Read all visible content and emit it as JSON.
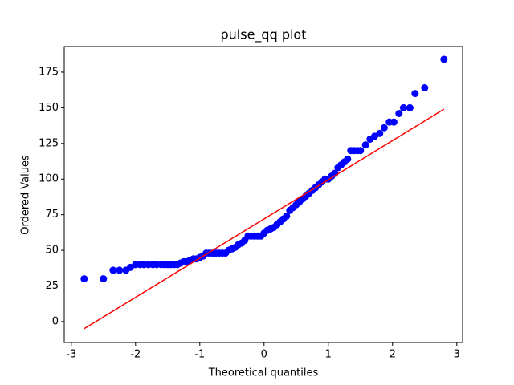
{
  "chart_data": {
    "type": "scatter",
    "title": "pulse_qq plot",
    "x_label": "Theoretical quantiles",
    "y_label": "Ordered Values",
    "xlim": [
      -3.11,
      3.09
    ],
    "ylim": [
      -14.7,
      193
    ],
    "xticks": [
      -3,
      -2,
      -1,
      0,
      1,
      2,
      3
    ],
    "yticks": [
      0,
      25,
      50,
      75,
      100,
      125,
      150,
      175
    ],
    "grid": false,
    "series": [
      {
        "color": "#0000ff",
        "x": [
          -2.8,
          -2.5,
          -2.35,
          -2.25,
          -2.15,
          -2.08,
          -2.0,
          -1.93,
          -1.87,
          -1.8,
          -1.73,
          -1.67,
          -1.6,
          -1.55,
          -1.5,
          -1.45,
          -1.4,
          -1.35,
          -1.3,
          -1.25,
          -1.2,
          -1.15,
          -1.1,
          -1.05,
          -1.0,
          -0.95,
          -0.9,
          -0.85,
          -0.8,
          -0.75,
          -0.7,
          -0.65,
          -0.6,
          -0.55,
          -0.5,
          -0.45,
          -0.4,
          -0.35,
          -0.3,
          -0.25,
          -0.2,
          -0.15,
          -0.1,
          -0.05,
          0.0,
          0.05,
          0.1,
          0.15,
          0.2,
          0.25,
          0.3,
          0.35,
          0.4,
          0.45,
          0.5,
          0.55,
          0.6,
          0.65,
          0.7,
          0.75,
          0.8,
          0.85,
          0.9,
          0.95,
          1.0,
          1.05,
          1.1,
          1.15,
          1.2,
          1.25,
          1.3,
          1.35,
          1.4,
          1.45,
          1.5,
          1.58,
          1.65,
          1.72,
          1.8,
          1.87,
          1.95,
          2.02,
          2.1,
          2.17,
          2.27,
          2.35,
          2.5,
          2.8
        ],
        "values": [
          30,
          30,
          36,
          36,
          36,
          38,
          40,
          40,
          40,
          40,
          40,
          40,
          40,
          40,
          40,
          40,
          40,
          40,
          41,
          42,
          42,
          43,
          44,
          44,
          45,
          46,
          48,
          48,
          48,
          48,
          48,
          48,
          48,
          50,
          51,
          52,
          54,
          55,
          57,
          60,
          60,
          60,
          60,
          60,
          62,
          64,
          65,
          66,
          68,
          70,
          72,
          74,
          78,
          80,
          82,
          84,
          86,
          88,
          90,
          92,
          94,
          96,
          98,
          100,
          100,
          102,
          104,
          108,
          110,
          112,
          114,
          120,
          120,
          120,
          120,
          124,
          128,
          130,
          132,
          136,
          140,
          140,
          146,
          150,
          150,
          160,
          164,
          184
        ]
      }
    ],
    "fit_line": {
      "color": "#ff0000",
      "x": [
        -2.8,
        2.8
      ],
      "values": [
        -5,
        149
      ]
    }
  }
}
